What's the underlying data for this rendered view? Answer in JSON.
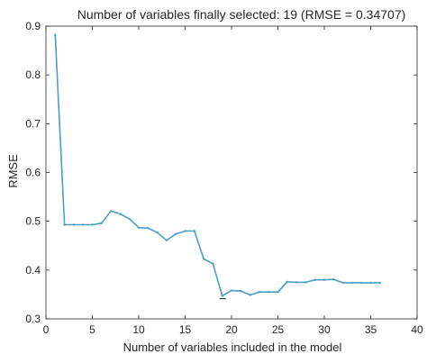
{
  "chart_data": {
    "type": "line",
    "title": "Number of variables finally selected: 19 (RMSE = 0.34707)",
    "xlabel": "Number of variables included in the model",
    "ylabel": "RMSE",
    "xlim": [
      0,
      40
    ],
    "ylim": [
      0.3,
      0.9
    ],
    "xticks": [
      0,
      5,
      10,
      15,
      20,
      25,
      30,
      35,
      40
    ],
    "yticks": [
      0.3,
      0.4,
      0.5,
      0.6,
      0.7,
      0.8,
      0.9
    ],
    "xtick_labels": [
      "0",
      "5",
      "10",
      "15",
      "20",
      "25",
      "30",
      "35",
      "40"
    ],
    "ytick_labels": [
      "0.3",
      "0.4",
      "0.5",
      "0.6",
      "0.7",
      "0.8",
      "0.9"
    ],
    "grid": false,
    "line_color": "#4a9fc8",
    "selected_marker_color": "#2f3b4a",
    "selected_point": {
      "x": 19,
      "y": 0.347
    },
    "series": [
      {
        "x": [
          1,
          2,
          3,
          4,
          5,
          6,
          7,
          8,
          9,
          10,
          11,
          12,
          13,
          14,
          15,
          16,
          17,
          18,
          19,
          20,
          21,
          22,
          23,
          24,
          25,
          26,
          27,
          28,
          29,
          30,
          31,
          32,
          33,
          34,
          35,
          36
        ],
        "values": [
          0.882,
          0.493,
          0.493,
          0.493,
          0.493,
          0.496,
          0.521,
          0.515,
          0.505,
          0.487,
          0.486,
          0.477,
          0.461,
          0.474,
          0.48,
          0.48,
          0.423,
          0.413,
          0.347,
          0.358,
          0.357,
          0.349,
          0.355,
          0.355,
          0.355,
          0.376,
          0.375,
          0.375,
          0.38,
          0.38,
          0.381,
          0.374,
          0.374,
          0.374,
          0.374,
          0.374
        ]
      }
    ]
  }
}
